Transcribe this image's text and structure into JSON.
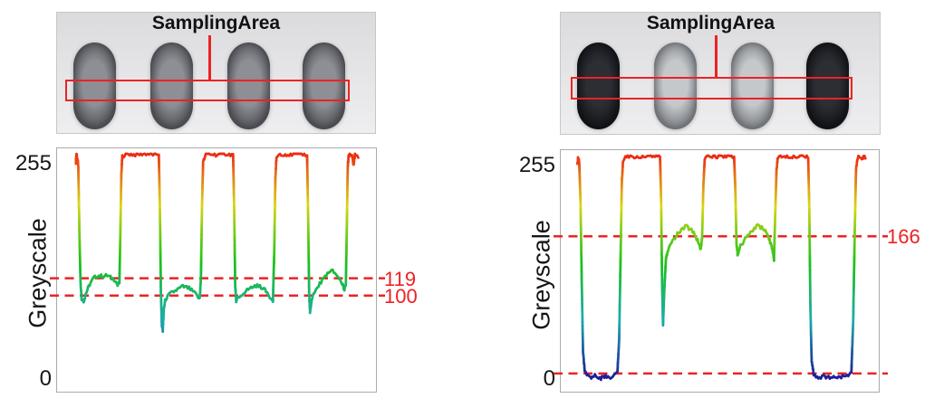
{
  "colors": {
    "accent_red": "#ec2224",
    "plot_border": "#ababaf",
    "image_border": "#c7c7ca",
    "axis_text": "#161616",
    "capsule_fills": {
      "mid": {
        "base": "#8e8f94",
        "rim": "#55565b"
      },
      "dark": {
        "base": "#2c2e34",
        "rim": "#141519"
      },
      "light": {
        "base": "#c5c8cb",
        "rim": "#808388"
      }
    }
  },
  "panels": [
    {
      "image": {
        "label": "SamplingArea",
        "capsules": [
          "mid",
          "mid",
          "mid",
          "mid"
        ]
      }
    },
    {
      "image": {
        "label": "SamplingArea",
        "capsules": [
          "dark",
          "light",
          "light",
          "dark"
        ]
      }
    }
  ],
  "chart_data": [
    {
      "type": "line",
      "title": "",
      "xlabel": "",
      "ylabel": "Greyscale",
      "ylim": [
        0,
        255
      ],
      "ytick_labels": [
        "255",
        "0"
      ],
      "grid": false,
      "legend": false,
      "color_encoding": "trace colored by greyscale value: 255=red, ~200=orange/yellow, ~120=green, ~60=cyan, ~10=dark blue",
      "reference_lines": [
        {
          "value": 119,
          "label": "119"
        },
        {
          "value": 100,
          "label": "100"
        }
      ],
      "series": [
        {
          "name": "greyscale line profile (4 uniform grey tablets)",
          "x_unit": "normalized position along sampling area",
          "points": [
            [
              0.059,
              246
            ],
            [
              0.061,
              255
            ],
            [
              0.0635,
              250
            ],
            [
              0.0665,
              242
            ],
            [
              0.07,
              170
            ],
            [
              0.0735,
              115
            ],
            [
              0.077,
              97
            ],
            [
              0.083,
              93
            ],
            [
              0.09,
              102
            ],
            [
              0.102,
              112
            ],
            [
              0.114,
              119
            ],
            [
              0.127,
              122
            ],
            [
              0.142,
              121
            ],
            [
              0.157,
              122
            ],
            [
              0.171,
              119
            ],
            [
              0.183,
              117
            ],
            [
              0.19,
              111
            ],
            [
              0.1955,
              114
            ],
            [
              0.1985,
              170
            ],
            [
              0.2015,
              232
            ],
            [
              0.2045,
              252
            ],
            [
              0.215,
              255
            ],
            [
              0.245,
              254
            ],
            [
              0.275,
              255
            ],
            [
              0.305,
              254
            ],
            [
              0.319,
              255
            ],
            [
              0.3225,
              195
            ],
            [
              0.3255,
              105
            ],
            [
              0.3285,
              68
            ],
            [
              0.3315,
              62
            ],
            [
              0.335,
              86
            ],
            [
              0.34,
              96
            ],
            [
              0.354,
              102
            ],
            [
              0.374,
              106
            ],
            [
              0.394,
              110
            ],
            [
              0.414,
              108
            ],
            [
              0.434,
              102
            ],
            [
              0.447,
              96
            ],
            [
              0.451,
              118
            ],
            [
              0.4545,
              198
            ],
            [
              0.458,
              246
            ],
            [
              0.468,
              255
            ],
            [
              0.498,
              254
            ],
            [
              0.528,
              255
            ],
            [
              0.552,
              254
            ],
            [
              0.5555,
              192
            ],
            [
              0.5585,
              112
            ],
            [
              0.5615,
              93
            ],
            [
              0.568,
              97
            ],
            [
              0.584,
              103
            ],
            [
              0.604,
              108
            ],
            [
              0.624,
              111
            ],
            [
              0.644,
              109
            ],
            [
              0.659,
              103
            ],
            [
              0.671,
              97
            ],
            [
              0.677,
              95
            ],
            [
              0.681,
              148
            ],
            [
              0.6845,
              228
            ],
            [
              0.688,
              251
            ],
            [
              0.699,
              255
            ],
            [
              0.728,
              254
            ],
            [
              0.757,
              255
            ],
            [
              0.784,
              254
            ],
            [
              0.7875,
              182
            ],
            [
              0.7905,
              102
            ],
            [
              0.7935,
              81
            ],
            [
              0.799,
              97
            ],
            [
              0.809,
              105
            ],
            [
              0.824,
              113
            ],
            [
              0.844,
              123
            ],
            [
              0.864,
              127
            ],
            [
              0.879,
              122
            ],
            [
              0.894,
              113
            ],
            [
              0.901,
              107
            ],
            [
              0.9055,
              112
            ],
            [
              0.9085,
              172
            ],
            [
              0.9115,
              240
            ],
            [
              0.9145,
              255
            ],
            [
              0.9245,
              254
            ],
            [
              0.9295,
              243
            ],
            [
              0.934,
              254
            ],
            [
              0.9445,
              252
            ]
          ]
        }
      ]
    },
    {
      "type": "line",
      "title": "",
      "xlabel": "",
      "ylabel": "Greyscale",
      "ylim": [
        0,
        255
      ],
      "ytick_labels": [
        "255",
        "0"
      ],
      "grid": false,
      "legend": false,
      "color_encoding": "trace colored by greyscale value: 255=red, ~200=orange/yellow, ~170=green, ~60=cyan, ~10=dark blue",
      "reference_lines": [
        {
          "value": 166,
          "label": "166"
        },
        {
          "value": 15,
          "label": ""
        }
      ],
      "series": [
        {
          "name": "greyscale line profile (dark / light / light / dark tablets)",
          "x_unit": "normalized position along sampling area",
          "points": [
            [
              0.052,
              246
            ],
            [
              0.055,
              253
            ],
            [
              0.058,
              248
            ],
            [
              0.062,
              205
            ],
            [
              0.066,
              115
            ],
            [
              0.07,
              38
            ],
            [
              0.0755,
              17
            ],
            [
              0.082,
              12
            ],
            [
              0.096,
              11
            ],
            [
              0.111,
              13
            ],
            [
              0.126,
              10
            ],
            [
              0.141,
              12
            ],
            [
              0.156,
              11
            ],
            [
              0.168,
              13
            ],
            [
              0.178,
              16
            ],
            [
              0.1835,
              52
            ],
            [
              0.188,
              142
            ],
            [
              0.192,
              226
            ],
            [
              0.196,
              250
            ],
            [
              0.21,
              255
            ],
            [
              0.24,
              253
            ],
            [
              0.27,
              255
            ],
            [
              0.3,
              254
            ],
            [
              0.312,
              255
            ],
            [
              0.3155,
              208
            ],
            [
              0.3185,
              118
            ],
            [
              0.3215,
              68
            ],
            [
              0.3255,
              106
            ],
            [
              0.3305,
              140
            ],
            [
              0.338,
              152
            ],
            [
              0.355,
              163
            ],
            [
              0.375,
              172
            ],
            [
              0.395,
              177
            ],
            [
              0.415,
              172
            ],
            [
              0.43,
              162
            ],
            [
              0.4405,
              152
            ],
            [
              0.4445,
              166
            ],
            [
              0.4485,
              222
            ],
            [
              0.4525,
              250
            ],
            [
              0.464,
              255
            ],
            [
              0.492,
              254
            ],
            [
              0.52,
              255
            ],
            [
              0.545,
              254
            ],
            [
              0.549,
              218
            ],
            [
              0.5525,
              158
            ],
            [
              0.556,
              147
            ],
            [
              0.565,
              155
            ],
            [
              0.58,
              163
            ],
            [
              0.6,
              172
            ],
            [
              0.62,
              178
            ],
            [
              0.64,
              174
            ],
            [
              0.655,
              164
            ],
            [
              0.666,
              150
            ],
            [
              0.6705,
              141
            ],
            [
              0.6745,
              192
            ],
            [
              0.6785,
              240
            ],
            [
              0.6825,
              253
            ],
            [
              0.699,
              255
            ],
            [
              0.728,
              254
            ],
            [
              0.757,
              255
            ],
            [
              0.778,
              254
            ],
            [
              0.7815,
              198
            ],
            [
              0.785,
              88
            ],
            [
              0.789,
              28
            ],
            [
              0.7955,
              14
            ],
            [
              0.81,
              11
            ],
            [
              0.83,
              12
            ],
            [
              0.85,
              10
            ],
            [
              0.87,
              12
            ],
            [
              0.89,
              11
            ],
            [
              0.904,
              13
            ],
            [
              0.914,
              18
            ],
            [
              0.9195,
              72
            ],
            [
              0.9245,
              172
            ],
            [
              0.9285,
              240
            ],
            [
              0.9325,
              252
            ],
            [
              0.94,
              255
            ],
            [
              0.9465,
              249
            ],
            [
              0.952,
              255
            ],
            [
              0.958,
              253
            ]
          ]
        }
      ]
    }
  ]
}
